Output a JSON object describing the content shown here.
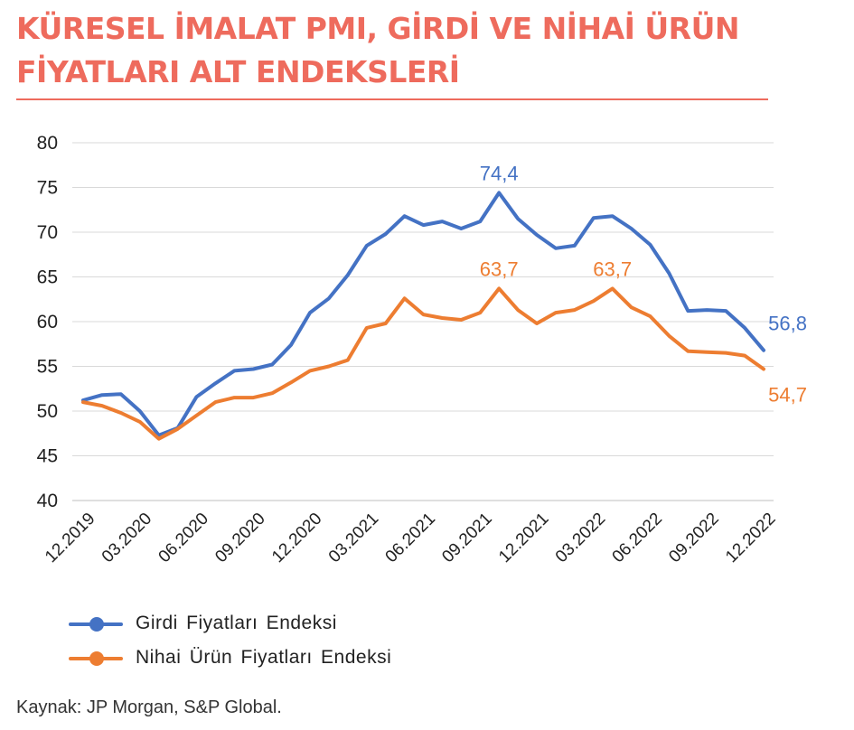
{
  "title": "KÜRESEL İMALAT PMI, GİRDİ VE NİHAİ ÜRÜN FİYATLARI ALT ENDEKSLERİ",
  "source": "Kaynak: JP Morgan, S&P Global.",
  "chart_data": {
    "type": "line",
    "title": "KÜRESEL İMALAT PMI, GİRDİ VE NİHAİ ÜRÜN FİYATLARI ALT ENDEKSLERİ",
    "xlabel": "",
    "ylabel": "",
    "ylim": [
      40,
      80
    ],
    "yticks": [
      "40",
      "45",
      "50",
      "55",
      "60",
      "65",
      "70",
      "75",
      "80"
    ],
    "grid": true,
    "legend_position": "bottom-left",
    "x": [
      "12.2019",
      "01.2020",
      "02.2020",
      "03.2020",
      "04.2020",
      "05.2020",
      "06.2020",
      "07.2020",
      "08.2020",
      "09.2020",
      "10.2020",
      "11.2020",
      "12.2020",
      "01.2021",
      "02.2021",
      "03.2021",
      "04.2021",
      "05.2021",
      "06.2021",
      "07.2021",
      "08.2021",
      "09.2021",
      "10.2021",
      "11.2021",
      "12.2021",
      "01.2022",
      "02.2022",
      "03.2022",
      "04.2022",
      "05.2022",
      "06.2022",
      "07.2022",
      "08.2022",
      "09.2022",
      "10.2022",
      "11.2022",
      "12.2022"
    ],
    "xtick_labels": [
      "12.2019",
      "03.2020",
      "06.2020",
      "09.2020",
      "12.2020",
      "03.2021",
      "06.2021",
      "09.2021",
      "12.2021",
      "03.2022",
      "06.2022",
      "09.2022",
      "12.2022"
    ],
    "series": [
      {
        "name": "Girdi Fiyatları Endeksi",
        "color": "#4472c4",
        "values": [
          51.2,
          51.8,
          51.9,
          50.0,
          47.3,
          48.1,
          51.6,
          53.1,
          54.5,
          54.7,
          55.2,
          57.4,
          61.0,
          62.6,
          65.2,
          68.5,
          69.8,
          71.8,
          70.8,
          71.2,
          70.4,
          71.2,
          74.4,
          71.5,
          69.7,
          68.2,
          68.5,
          71.6,
          71.8,
          70.4,
          68.6,
          65.4,
          61.2,
          61.3,
          61.2,
          59.3,
          56.8
        ],
        "labels": [
          {
            "x": "10.2021",
            "text": "74,4"
          },
          {
            "x": "12.2022",
            "text": "56,8"
          }
        ]
      },
      {
        "name": "Nihai Ürün Fiyatları Endeksi",
        "color": "#ed7d31",
        "values": [
          51.0,
          50.6,
          49.8,
          48.8,
          46.9,
          48.0,
          49.5,
          51.0,
          51.5,
          51.5,
          52.0,
          53.2,
          54.5,
          55.0,
          55.7,
          59.3,
          59.8,
          62.6,
          60.8,
          60.4,
          60.2,
          61.0,
          63.7,
          61.3,
          59.8,
          61.0,
          61.3,
          62.3,
          63.7,
          61.6,
          60.6,
          58.4,
          56.7,
          56.6,
          56.5,
          56.2,
          54.7
        ],
        "labels": [
          {
            "x": "10.2021",
            "text": "63,7"
          },
          {
            "x": "04.2022",
            "text": "63,7"
          },
          {
            "x": "12.2022",
            "text": "54,7"
          }
        ]
      }
    ]
  }
}
